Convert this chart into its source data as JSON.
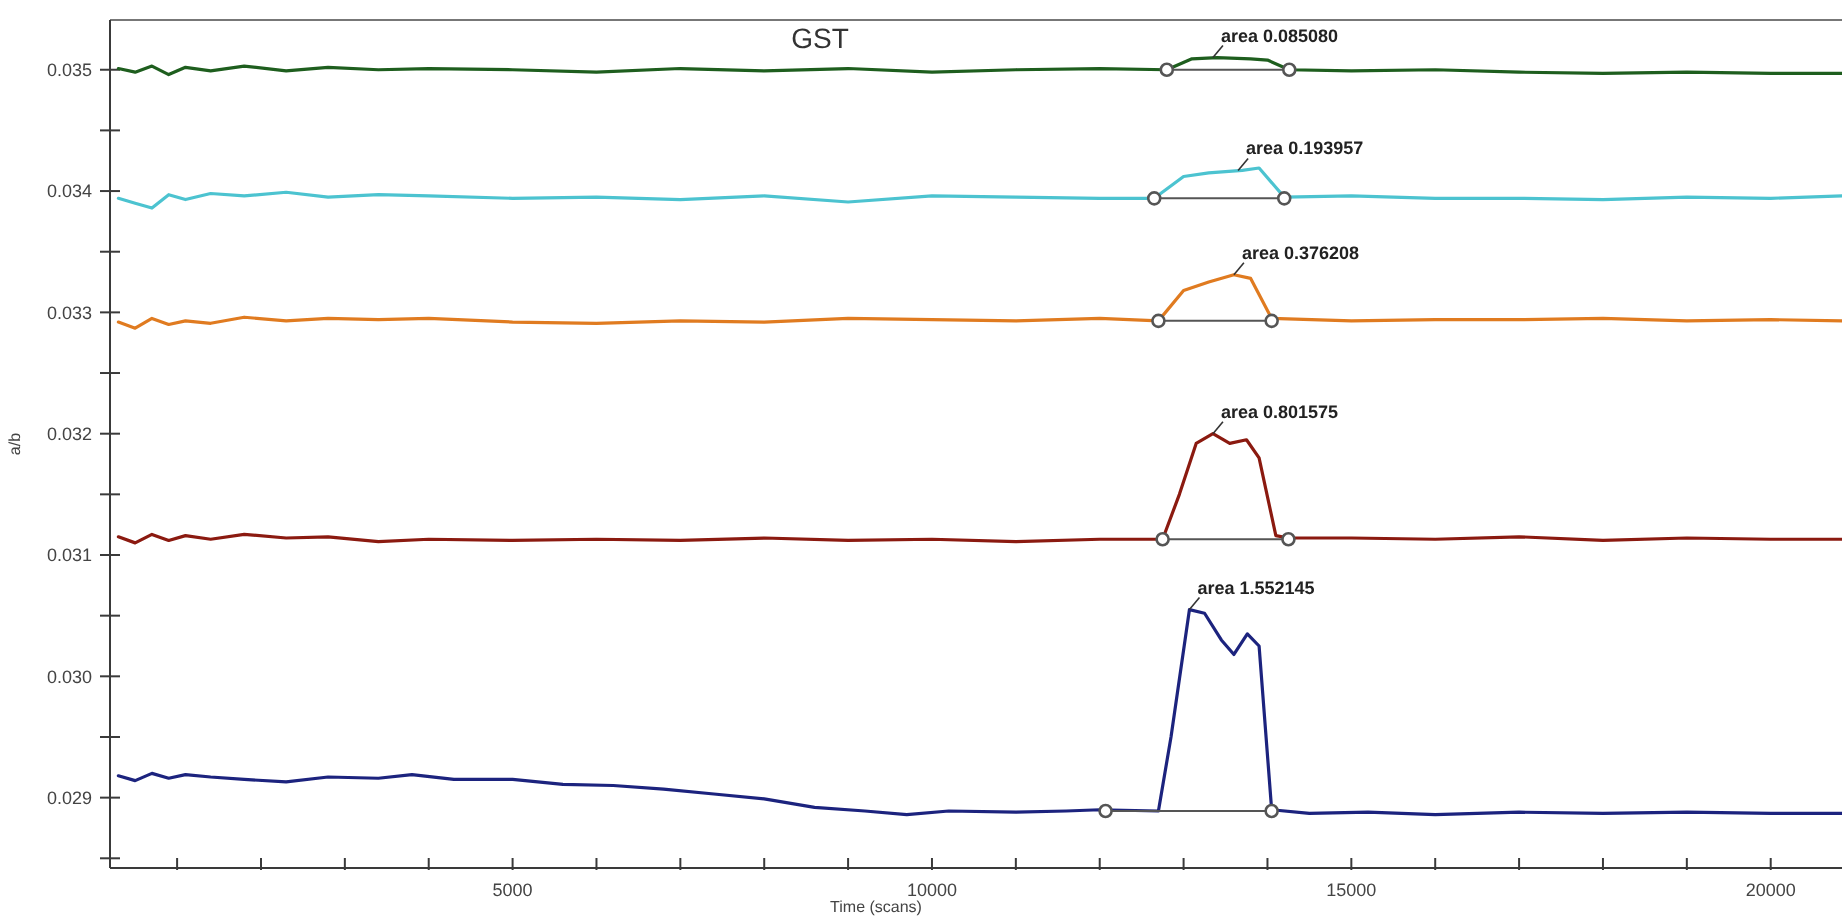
{
  "chart_data": {
    "type": "line",
    "title": "GST",
    "xlabel": "Time (scans)",
    "ylabel": "a/b",
    "xlim": [
      200,
      20850
    ],
    "ylim": [
      0.02842,
      0.03541
    ],
    "xticks": [
      {
        "value": 1000,
        "label": null
      },
      {
        "value": 2000,
        "label": null
      },
      {
        "value": 3000,
        "label": null
      },
      {
        "value": 4000,
        "label": null
      },
      5000,
      {
        "value": 6000,
        "label": null
      },
      {
        "value": 7000,
        "label": null
      },
      {
        "value": 8000,
        "label": null
      },
      {
        "value": 9000,
        "label": null
      },
      10000,
      {
        "value": 11000,
        "label": null
      },
      {
        "value": 12000,
        "label": null
      },
      {
        "value": 13000,
        "label": null
      },
      {
        "value": 14000,
        "label": null
      },
      15000,
      {
        "value": 16000,
        "label": null
      },
      {
        "value": 17000,
        "label": null
      },
      {
        "value": 18000,
        "label": null
      },
      {
        "value": 19000,
        "label": null
      },
      20000
    ],
    "yticks": [
      {
        "value": 0.0285,
        "label": null
      },
      {
        "value": 0.029,
        "label": "0.029"
      },
      {
        "value": 0.0295,
        "label": null
      },
      {
        "value": 0.03,
        "label": "0.030"
      },
      {
        "value": 0.0305,
        "label": null
      },
      {
        "value": 0.031,
        "label": "0.031"
      },
      {
        "value": 0.0315,
        "label": null
      },
      {
        "value": 0.032,
        "label": "0.032"
      },
      {
        "value": 0.0325,
        "label": null
      },
      {
        "value": 0.033,
        "label": "0.033"
      },
      {
        "value": 0.0335,
        "label": null
      },
      {
        "value": 0.034,
        "label": "0.034"
      },
      {
        "value": 0.0345,
        "label": null
      },
      {
        "value": 0.035,
        "label": "0.035"
      }
    ],
    "grid": false,
    "marker": "none",
    "line_style": "solid",
    "series": [
      {
        "color": "#1e5e1e",
        "x": [
          300,
          500,
          700,
          900,
          1100,
          1400,
          1800,
          2300,
          2800,
          3400,
          4000,
          5000,
          6000,
          7000,
          8000,
          9000,
          10000,
          11000,
          12000,
          12800,
          13100,
          13400,
          13800,
          14000,
          14260,
          15000,
          16000,
          17000,
          18000,
          19000,
          20000,
          20850
        ],
        "values": [
          0.03501,
          0.03498,
          0.03503,
          0.03496,
          0.03502,
          0.03499,
          0.03503,
          0.03499,
          0.03502,
          0.035,
          0.03501,
          0.035,
          0.03498,
          0.03501,
          0.03499,
          0.03501,
          0.03498,
          0.035,
          0.03501,
          0.035,
          0.03509,
          0.0351,
          0.03509,
          0.03508,
          0.035,
          0.03499,
          0.035,
          0.03498,
          0.03497,
          0.03498,
          0.03497,
          0.03497
        ]
      },
      {
        "color": "#4cc3d0",
        "x": [
          300,
          500,
          700,
          900,
          1100,
          1400,
          1800,
          2300,
          2800,
          3400,
          4000,
          5000,
          6000,
          7000,
          8000,
          9000,
          10000,
          11000,
          12000,
          12650,
          13000,
          13300,
          13700,
          13900,
          14200,
          15000,
          16000,
          17000,
          18000,
          19000,
          20000,
          20850
        ],
        "values": [
          0.03394,
          0.0339,
          0.03386,
          0.03397,
          0.03393,
          0.03398,
          0.03396,
          0.03399,
          0.03395,
          0.03397,
          0.03396,
          0.03394,
          0.03395,
          0.03393,
          0.03396,
          0.03391,
          0.03396,
          0.03395,
          0.03394,
          0.03394,
          0.03412,
          0.03415,
          0.03417,
          0.03419,
          0.03395,
          0.03396,
          0.03394,
          0.03394,
          0.03393,
          0.03395,
          0.03394,
          0.03396
        ]
      },
      {
        "color": "#e07b20",
        "x": [
          300,
          500,
          700,
          900,
          1100,
          1400,
          1800,
          2300,
          2800,
          3400,
          4000,
          5000,
          6000,
          7000,
          8000,
          9000,
          10000,
          11000,
          12000,
          12700,
          13000,
          13300,
          13600,
          13800,
          14050,
          15000,
          16000,
          17000,
          18000,
          19000,
          20000,
          20850
        ],
        "values": [
          0.03292,
          0.03287,
          0.03295,
          0.0329,
          0.03293,
          0.03291,
          0.03296,
          0.03293,
          0.03295,
          0.03294,
          0.03295,
          0.03292,
          0.03291,
          0.03293,
          0.03292,
          0.03295,
          0.03294,
          0.03293,
          0.03295,
          0.03293,
          0.03318,
          0.03325,
          0.03331,
          0.03328,
          0.03295,
          0.03293,
          0.03294,
          0.03294,
          0.03295,
          0.03293,
          0.03294,
          0.03293
        ]
      },
      {
        "color": "#8b1a10",
        "x": [
          300,
          500,
          700,
          900,
          1100,
          1400,
          1800,
          2300,
          2800,
          3400,
          4000,
          5000,
          6000,
          7000,
          8000,
          9000,
          10000,
          11000,
          12000,
          12750,
          12950,
          13150,
          13350,
          13550,
          13750,
          13900,
          14100,
          14250,
          15000,
          16000,
          17000,
          18000,
          19000,
          20000,
          20850
        ],
        "values": [
          0.03115,
          0.0311,
          0.03117,
          0.03112,
          0.03116,
          0.03113,
          0.03117,
          0.03114,
          0.03115,
          0.03111,
          0.03113,
          0.03112,
          0.03113,
          0.03112,
          0.03114,
          0.03112,
          0.03113,
          0.03111,
          0.03113,
          0.03113,
          0.0315,
          0.03192,
          0.032,
          0.03192,
          0.03195,
          0.0318,
          0.03116,
          0.03114,
          0.03114,
          0.03113,
          0.03115,
          0.03112,
          0.03114,
          0.03113,
          0.03113
        ]
      },
      {
        "color": "#1c237e",
        "x": [
          300,
          500,
          700,
          900,
          1100,
          1400,
          1800,
          2300,
          2800,
          3400,
          3800,
          4300,
          5000,
          5600,
          6200,
          6800,
          7400,
          8000,
          8600,
          9200,
          9700,
          10200,
          11000,
          11600,
          12000,
          12700,
          12850,
          13070,
          13250,
          13450,
          13600,
          13760,
          13900,
          14050,
          14500,
          15200,
          16000,
          17000,
          18000,
          19000,
          20000,
          20850
        ],
        "values": [
          0.02918,
          0.02914,
          0.0292,
          0.02916,
          0.02919,
          0.02917,
          0.02915,
          0.02913,
          0.02917,
          0.02916,
          0.02919,
          0.02915,
          0.02915,
          0.02911,
          0.0291,
          0.02907,
          0.02903,
          0.02899,
          0.02892,
          0.02889,
          0.02886,
          0.02889,
          0.02888,
          0.02889,
          0.0289,
          0.02889,
          0.0295,
          0.03055,
          0.03052,
          0.0303,
          0.03018,
          0.03035,
          0.03025,
          0.0289,
          0.02887,
          0.02888,
          0.02886,
          0.02888,
          0.02887,
          0.02888,
          0.02887,
          0.02887
        ]
      },
      {
        "type": "line",
        "color": "#555555",
        "marker": "circle",
        "x": [
          12800,
          14260
        ],
        "values": [
          0.035,
          0.035
        ]
      },
      {
        "type": "line",
        "color": "#555555",
        "marker": "circle",
        "x": [
          12650,
          14200
        ],
        "values": [
          0.03394,
          0.03394
        ]
      },
      {
        "type": "line",
        "color": "#555555",
        "marker": "circle",
        "x": [
          12700,
          14050
        ],
        "values": [
          0.03293,
          0.03293
        ]
      },
      {
        "type": "line",
        "color": "#555555",
        "marker": "circle",
        "x": [
          12750,
          14250
        ],
        "values": [
          0.03113,
          0.03113
        ]
      },
      {
        "type": "line",
        "color": "#555555",
        "marker": "circle",
        "x": [
          12070,
          14050
        ],
        "values": [
          0.02889,
          0.02889
        ]
      }
    ],
    "annotations": [
      {
        "text": "area 0.085080",
        "x": 13350,
        "y": 0.0351
      },
      {
        "text": "area 0.193957",
        "x": 13650,
        "y": 0.03417
      },
      {
        "text": "area 0.376208",
        "x": 13600,
        "y": 0.03331
      },
      {
        "text": "area 0.801575",
        "x": 13350,
        "y": 0.032
      },
      {
        "text": "area 1.552145",
        "x": 13070,
        "y": 0.03055
      }
    ]
  }
}
